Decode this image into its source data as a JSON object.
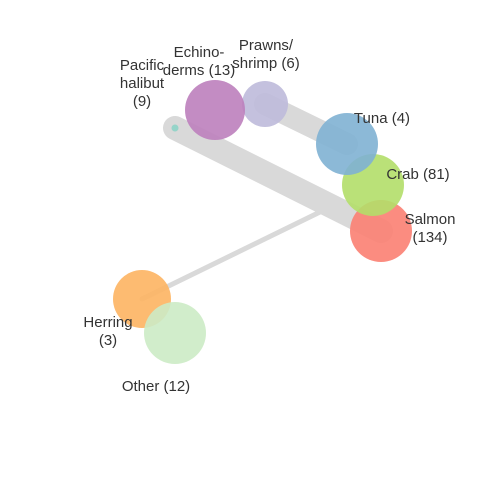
{
  "network": {
    "nodes": [
      {
        "id": "salmon",
        "label_lines": [
          "Salmon",
          "(134)"
        ],
        "color": "#fb8072"
      },
      {
        "id": "crab",
        "label_lines": [
          "Crab (81)"
        ],
        "color": "#b3de69"
      },
      {
        "id": "tuna",
        "label_lines": [
          "Tuna (4)"
        ],
        "color": "#80b1d3"
      },
      {
        "id": "prawns",
        "label_lines": [
          "Prawns/",
          "shrimp (6)"
        ],
        "color": "#bebada"
      },
      {
        "id": "echinoderms",
        "label_lines": [
          "Echino-",
          "derms (13)"
        ],
        "color": "#bc80bd"
      },
      {
        "id": "pacific-halibut",
        "label_lines": [
          "Pacific",
          "halibut",
          "(9)"
        ],
        "color": "#8dd3c7"
      },
      {
        "id": "herring",
        "label_lines": [
          "Herring",
          "(3)"
        ],
        "color": "#fdb462"
      },
      {
        "id": "other",
        "label_lines": [
          "Other (12)"
        ],
        "color": "#ccebc5"
      }
    ],
    "edges": [
      {
        "source": "pacific-halibut",
        "target": "salmon"
      },
      {
        "source": "prawns",
        "target": "tuna"
      },
      {
        "source": "herring",
        "target": "salmon"
      }
    ],
    "colors": {
      "edge": "#d9d9d9",
      "background": "#ffffff"
    }
  }
}
